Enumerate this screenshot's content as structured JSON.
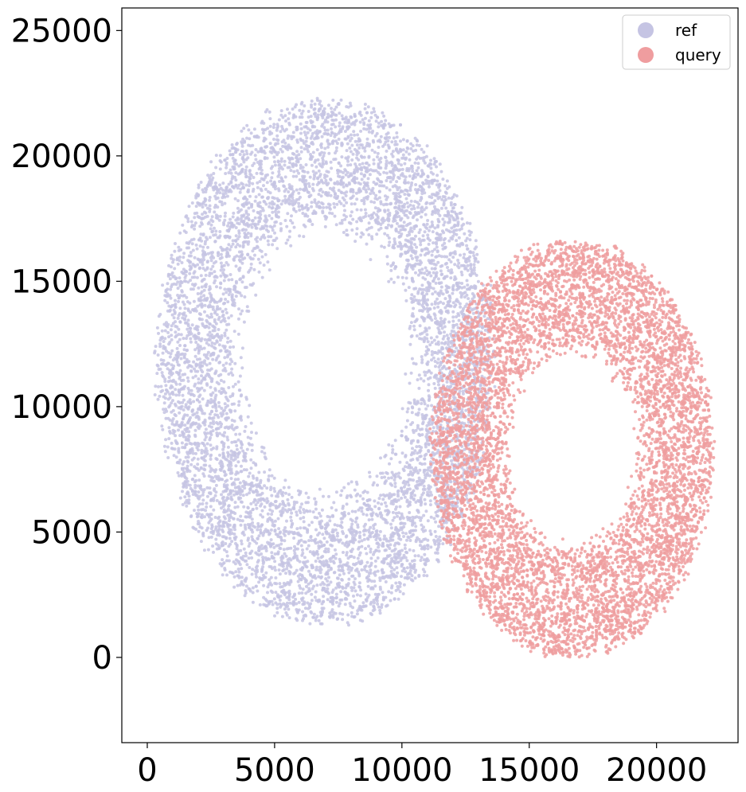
{
  "chart_data": {
    "type": "scatter",
    "title": "",
    "xlabel": "",
    "ylabel": "",
    "xlim": [
      -1000,
      23200
    ],
    "ylim": [
      -3400,
      25900
    ],
    "xticks": [
      0,
      5000,
      10000,
      15000,
      20000
    ],
    "yticks": [
      0,
      5000,
      10000,
      15000,
      20000,
      25000
    ],
    "xtick_labels": [
      "0",
      "5000",
      "10000",
      "15000",
      "20000"
    ],
    "ytick_labels": [
      "0",
      "5000",
      "10000",
      "15000",
      "20000",
      "25000"
    ],
    "grid": false,
    "legend_position": "top-right",
    "series": [
      {
        "name": "ref",
        "color": "#c5c4e3",
        "shape": "ring",
        "center": [
          7000,
          11800
        ],
        "outer_radius": [
          6600,
          10400
        ],
        "inner_hole_radius": [
          1200,
          5800
        ],
        "x_range": [
          0,
          14000
        ],
        "y_range": [
          900,
          22400
        ],
        "approx_points": 7000
      },
      {
        "name": "query",
        "color": "#ef9d9f",
        "shape": "ring",
        "center": [
          16700,
          8300
        ],
        "outer_radius": [
          5500,
          8300
        ],
        "inner_hole_radius": [
          1100,
          4200
        ],
        "x_range": [
          11000,
          22300
        ],
        "y_range": [
          0,
          16600
        ],
        "approx_points": 7000
      }
    ]
  }
}
